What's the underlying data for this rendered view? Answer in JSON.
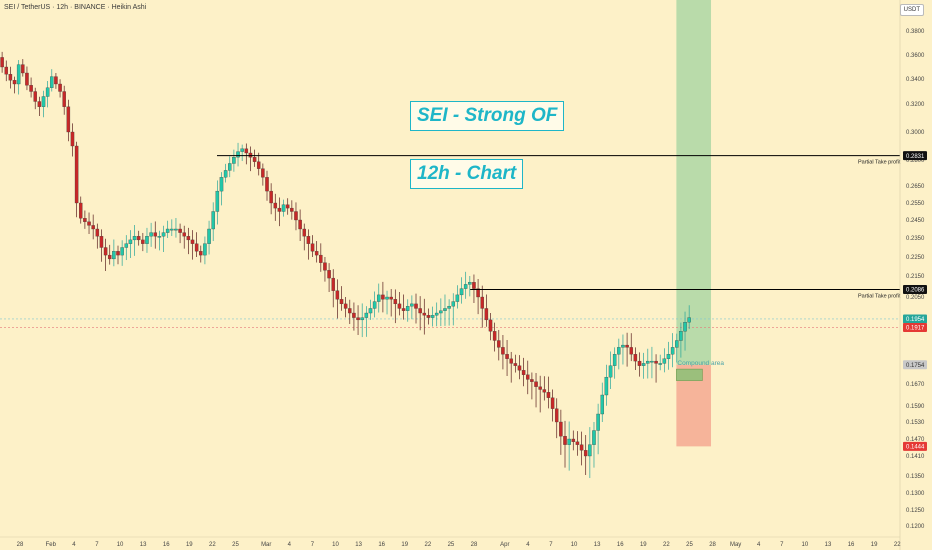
{
  "header": {
    "title": "SEI / TetherUS · 12h · BINANCE · Heikin Ashi",
    "currency": "USDT"
  },
  "annotations": {
    "banner_1": "SEI - Strong OF",
    "banner_2": "12h - Chart",
    "compound_area": "Compound area",
    "tp_label_1": "Partial Take profit",
    "tp_label_2": "Partial Take profit"
  },
  "colors": {
    "background": "#fdf1c8",
    "bull": "#26a69a",
    "bull_body": "#22c7a9",
    "bear": "#c62828",
    "banner": "#1eb6c8",
    "green_zone": "#b9dbaa",
    "red_zone": "#f6b49a"
  },
  "chart_data": {
    "type": "candlestick",
    "title": "SEI / TetherUS · 12h · BINANCE · Heikin Ashi",
    "y_axis_ticks": [
      "0.3800",
      "0.3600",
      "0.3400",
      "0.3200",
      "0.3000",
      "0.2800",
      "0.2650",
      "0.2550",
      "0.2450",
      "0.2350",
      "0.2250",
      "0.2150",
      "0.2050",
      "0.1670",
      "0.1590",
      "0.1530",
      "0.1470",
      "0.1410",
      "0.1350",
      "0.1300",
      "0.1250",
      "0.1200"
    ],
    "x_axis_ticks": [
      "28",
      "Feb",
      "4",
      "7",
      "10",
      "13",
      "16",
      "19",
      "22",
      "25",
      "Mar",
      "4",
      "7",
      "10",
      "13",
      "16",
      "19",
      "22",
      "25",
      "28",
      "Apr",
      "4",
      "7",
      "10",
      "13",
      "16",
      "19",
      "22",
      "25",
      "28",
      "May",
      "4",
      "7",
      "10",
      "13",
      "16",
      "19",
      "22"
    ],
    "price_labels": [
      {
        "text": "0.2831",
        "style": "black"
      },
      {
        "text": "0.2086",
        "style": "black"
      },
      {
        "text": "0.1954",
        "style": "teal"
      },
      {
        "text": "0.1917",
        "style": "red"
      },
      {
        "text": "0.1754",
        "style": "gray"
      },
      {
        "text": "0.1444",
        "style": "red"
      }
    ],
    "horizontal_levels": [
      {
        "price": 0.2831,
        "label": "Partial Take profit"
      },
      {
        "price": 0.2086,
        "label": "Partial Take profit"
      }
    ],
    "green_zone": {
      "x_from": "Apr 23",
      "x_to": "Apr 27",
      "price_top": 0.398,
      "price_bottom": 0.1754
    },
    "red_zone": {
      "x_from": "Apr 23",
      "x_to": "Apr 27",
      "price_top": 0.1754,
      "price_bottom": 0.1444
    },
    "compound_area": {
      "label": "Compound area",
      "price_top": 0.1754,
      "price_bottom": 0.168
    },
    "candles_close_approx": [
      0.362,
      0.358,
      0.35,
      0.344,
      0.339,
      0.336,
      0.352,
      0.345,
      0.335,
      0.33,
      0.322,
      0.318,
      0.326,
      0.333,
      0.342,
      0.336,
      0.33,
      0.318,
      0.3,
      0.29,
      0.255,
      0.246,
      0.244,
      0.242,
      0.24,
      0.236,
      0.23,
      0.226,
      0.224,
      0.228,
      0.226,
      0.23,
      0.232,
      0.234,
      0.236,
      0.234,
      0.232,
      0.236,
      0.238,
      0.236,
      0.236,
      0.238,
      0.24,
      0.24,
      0.24,
      0.238,
      0.236,
      0.234,
      0.232,
      0.228,
      0.226,
      0.232,
      0.24,
      0.25,
      0.262,
      0.27,
      0.274,
      0.278,
      0.282,
      0.286,
      0.288,
      0.285,
      0.282,
      0.279,
      0.275,
      0.27,
      0.262,
      0.255,
      0.252,
      0.25,
      0.254,
      0.252,
      0.25,
      0.245,
      0.24,
      0.236,
      0.232,
      0.228,
      0.226,
      0.222,
      0.218,
      0.214,
      0.208,
      0.204,
      0.202,
      0.2,
      0.198,
      0.196,
      0.195,
      0.196,
      0.198,
      0.2,
      0.203,
      0.206,
      0.204,
      0.205,
      0.204,
      0.202,
      0.2,
      0.199,
      0.201,
      0.202,
      0.2,
      0.198,
      0.197,
      0.196,
      0.197,
      0.198,
      0.199,
      0.2,
      0.201,
      0.203,
      0.206,
      0.209,
      0.211,
      0.212,
      0.209,
      0.205,
      0.2,
      0.195,
      0.19,
      0.186,
      0.183,
      0.18,
      0.178,
      0.176,
      0.175,
      0.173,
      0.171,
      0.169,
      0.168,
      0.166,
      0.165,
      0.164,
      0.162,
      0.158,
      0.153,
      0.148,
      0.145,
      0.147,
      0.146,
      0.145,
      0.143,
      0.141,
      0.145,
      0.15,
      0.156,
      0.163,
      0.17,
      0.175,
      0.18,
      0.183,
      0.184,
      0.183,
      0.18,
      0.177,
      0.175,
      0.176,
      0.177,
      0.177,
      0.176,
      0.176,
      0.178,
      0.18,
      0.183,
      0.186,
      0.19,
      0.194,
      0.196
    ]
  }
}
